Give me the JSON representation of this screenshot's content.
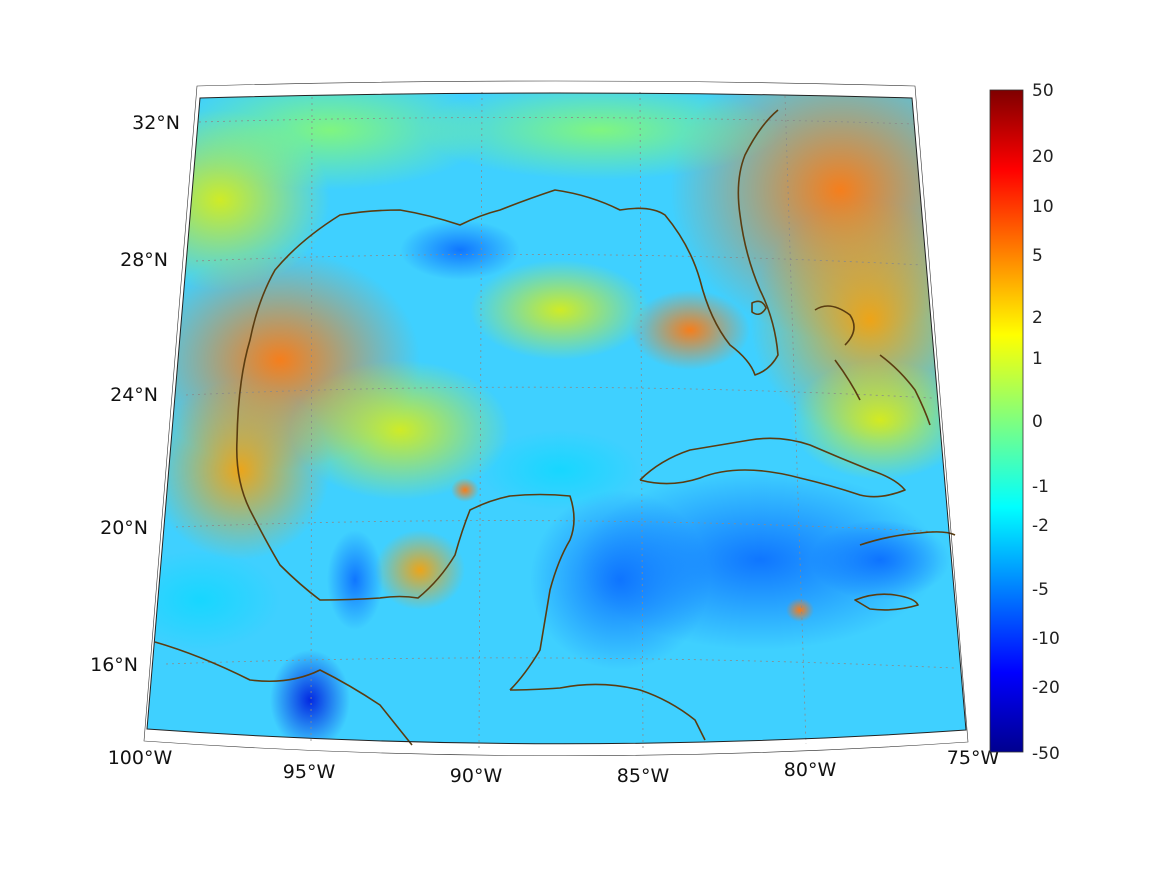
{
  "map": {
    "lon_labels": [
      "100°W",
      "95°W",
      "90°W",
      "85°W",
      "80°W",
      "75°W"
    ],
    "lat_labels": [
      "16°N",
      "20°N",
      "24°N",
      "28°N",
      "32°N"
    ],
    "colorbar_ticks": [
      "50",
      "20",
      "10",
      "5",
      "2",
      "1",
      "0",
      "-1",
      "-2",
      "-5",
      "-10",
      "-20",
      "-50"
    ],
    "colormap": "jet",
    "colors": {
      "coastline": "#5a3c10",
      "grid": "#8a8a8a"
    }
  }
}
